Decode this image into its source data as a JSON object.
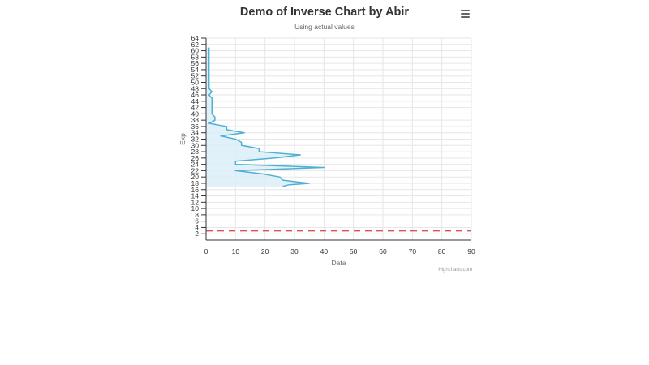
{
  "header": {
    "title": "Demo of Inverse Chart by Abir",
    "subtitle": "Using actual values",
    "menu_icon": "hamburger-menu-icon"
  },
  "credits": "Highcharts.com",
  "colors": {
    "series_line": "#4fb0d2",
    "series_fill": "#dceef8",
    "plot_line": "#d9534f",
    "grid": "#e6e6e6",
    "axis": "#333333"
  },
  "chart_data": {
    "type": "area",
    "title": "Demo of Inverse Chart by Abir",
    "subtitle": "Using actual values",
    "xlabel": "Data",
    "ylabel": "Exp",
    "xlim": [
      0,
      90
    ],
    "ylim": [
      0,
      64
    ],
    "x_ticks": [
      0,
      10,
      20,
      30,
      40,
      50,
      60,
      70,
      80,
      90
    ],
    "y_ticks": [
      2,
      4,
      6,
      8,
      10,
      12,
      14,
      16,
      18,
      20,
      22,
      24,
      26,
      28,
      30,
      32,
      34,
      36,
      38,
      40,
      42,
      44,
      46,
      48,
      50,
      52,
      54,
      56,
      58,
      60,
      62,
      64
    ],
    "inverted": true,
    "grid": true,
    "legend": "none",
    "plot_line": {
      "axis": "y",
      "value": 3,
      "style": "dashed"
    },
    "series": [
      {
        "points": [
          {
            "x": 26,
            "y": 17
          },
          {
            "x": 28,
            "y": 17.5
          },
          {
            "x": 35,
            "y": 18
          },
          {
            "x": 26,
            "y": 19
          },
          {
            "x": 25,
            "y": 20
          },
          {
            "x": 19,
            "y": 21
          },
          {
            "x": 10,
            "y": 22
          },
          {
            "x": 40,
            "y": 23
          },
          {
            "x": 10,
            "y": 24
          },
          {
            "x": 10,
            "y": 25
          },
          {
            "x": 23,
            "y": 26
          },
          {
            "x": 32,
            "y": 27
          },
          {
            "x": 18,
            "y": 28
          },
          {
            "x": 18,
            "y": 29
          },
          {
            "x": 12,
            "y": 30
          },
          {
            "x": 12,
            "y": 31
          },
          {
            "x": 10,
            "y": 32
          },
          {
            "x": 5,
            "y": 33
          },
          {
            "x": 13,
            "y": 34
          },
          {
            "x": 7,
            "y": 35
          },
          {
            "x": 7,
            "y": 36
          },
          {
            "x": 1,
            "y": 37
          },
          {
            "x": 3,
            "y": 38
          },
          {
            "x": 3,
            "y": 39
          },
          {
            "x": 2,
            "y": 40
          },
          {
            "x": 2,
            "y": 42
          },
          {
            "x": 2,
            "y": 44
          },
          {
            "x": 2,
            "y": 45
          },
          {
            "x": 1,
            "y": 46
          },
          {
            "x": 2,
            "y": 47
          },
          {
            "x": 1,
            "y": 48
          },
          {
            "x": 1,
            "y": 50
          },
          {
            "x": 1,
            "y": 52
          },
          {
            "x": 1,
            "y": 54
          },
          {
            "x": 1,
            "y": 56
          },
          {
            "x": 1,
            "y": 58
          },
          {
            "x": 1,
            "y": 61
          }
        ]
      }
    ]
  }
}
